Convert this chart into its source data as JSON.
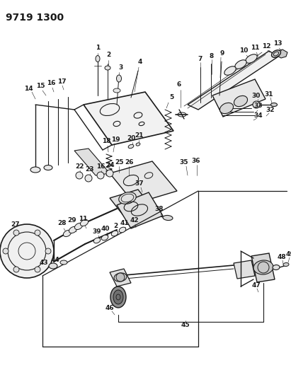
{
  "title": "9719 1300",
  "bg_color": "#ffffff",
  "line_color": "#1a1a1a",
  "title_fontsize": 10,
  "label_fontsize": 6.5,
  "fig_width": 4.11,
  "fig_height": 5.33,
  "dpi": 100
}
